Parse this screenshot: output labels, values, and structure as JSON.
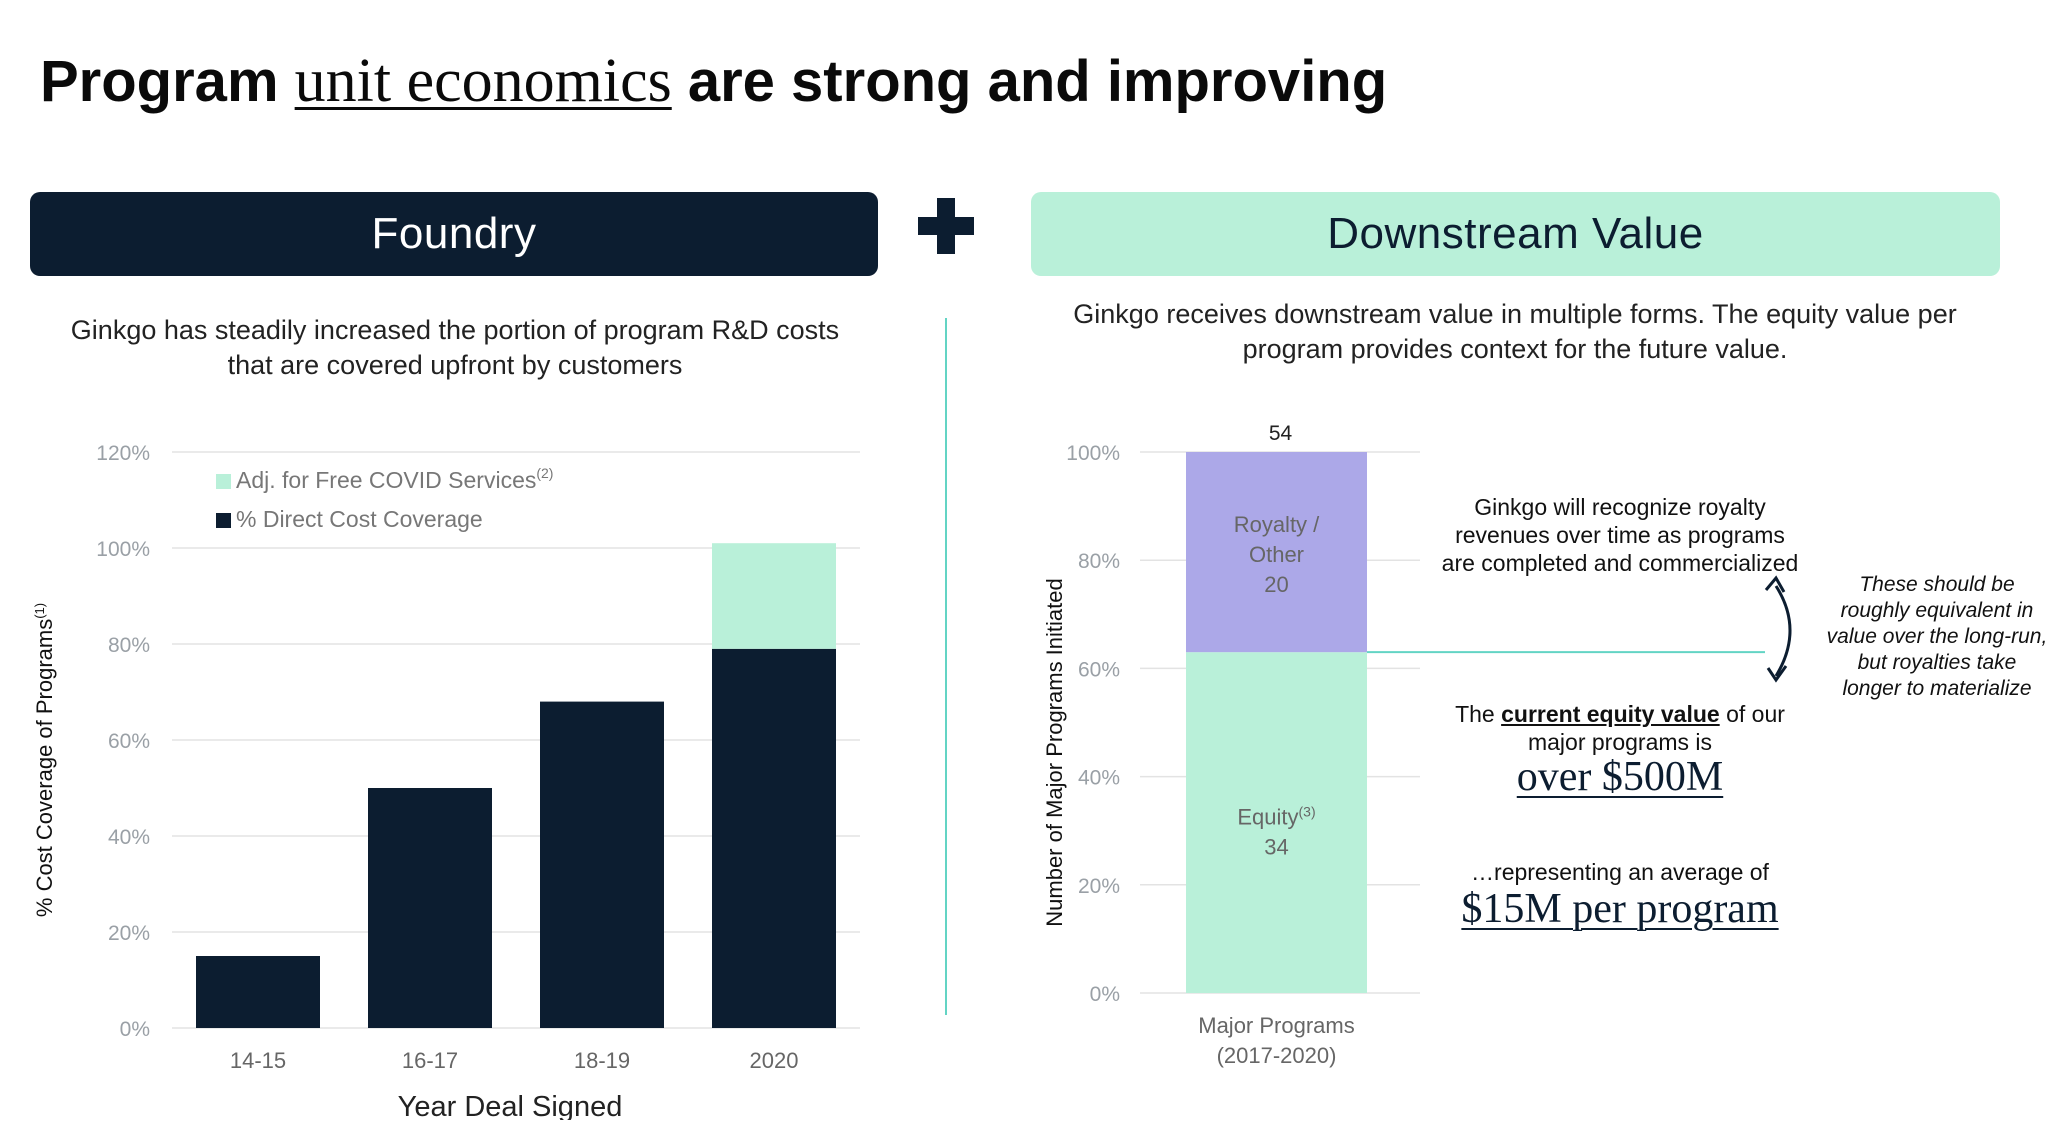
{
  "title": {
    "part1": "Program ",
    "part2": "unit economics",
    "part3": " are strong and improving"
  },
  "plus_symbol": "+",
  "foundry": {
    "header": "Foundry",
    "subtitle": "Ginkgo has steadily increased the portion of program R&D costs that are covered upfront by customers"
  },
  "downstream": {
    "header": "Downstream Value",
    "subtitle": "Ginkgo receives downstream value in multiple forms.  The equity value per program provides context for the future value.",
    "royalty_note": "Ginkgo will recognize royalty revenues over time as programs are completed and commercialized",
    "equity_note_pre": "The ",
    "equity_note_link": "current equity value",
    "equity_note_post": " of our major programs is",
    "equity_value": "over $500M",
    "avg_lead": "…representing an average of",
    "avg_value": "$15M per program",
    "side_note": "These should be roughly equivalent in value over the long-run, but royalties take longer to materialize"
  },
  "colors": {
    "navy": "#0c1d30",
    "mint": "#b9f0d9",
    "lavender": "#aca8e8",
    "teal": "#63d4c4"
  },
  "chart_data": [
    {
      "type": "bar",
      "stacked": true,
      "categories": [
        "14-15",
        "16-17",
        "18-19",
        "2020"
      ],
      "series": [
        {
          "name": "% Direct Cost Coverage",
          "color": "#0c1d30",
          "values": [
            15,
            50,
            68,
            79
          ]
        },
        {
          "name": "Adj. for Free COVID Services",
          "name_superscript": "(2)",
          "color": "#b9f0d9",
          "values": [
            0,
            0,
            0,
            22
          ]
        }
      ],
      "xlabel": "Year Deal Signed",
      "ylabel": "% Cost Coverage of Programs",
      "ylabel_superscript": "(1)",
      "ylim": [
        0,
        120
      ],
      "yticks": [
        0,
        20,
        40,
        60,
        80,
        100,
        120
      ],
      "ytick_labels": [
        "0%",
        "20%",
        "40%",
        "60%",
        "80%",
        "100%",
        "120%"
      ],
      "grid": true,
      "legend_position": "top-left"
    },
    {
      "type": "bar",
      "stacked": true,
      "categories": [
        "Major Programs (2017-2020)"
      ],
      "category_lines": [
        "Major Programs",
        "(2017-2020)"
      ],
      "total_label": "54",
      "series": [
        {
          "name": "Equity",
          "name_superscript": "(3)",
          "color": "#b9f0d9",
          "count": 34,
          "values": [
            63
          ]
        },
        {
          "name": "Royalty / Other",
          "name_lines": [
            "Royalty /",
            "Other"
          ],
          "color": "#aca8e8",
          "count": 20,
          "values": [
            37
          ]
        }
      ],
      "ylabel": "Number of Major Programs Initiated",
      "ylim": [
        0,
        100
      ],
      "yticks": [
        0,
        20,
        40,
        60,
        80,
        100
      ],
      "ytick_labels": [
        "0%",
        "20%",
        "40%",
        "60%",
        "80%",
        "100%"
      ],
      "grid": true
    }
  ]
}
